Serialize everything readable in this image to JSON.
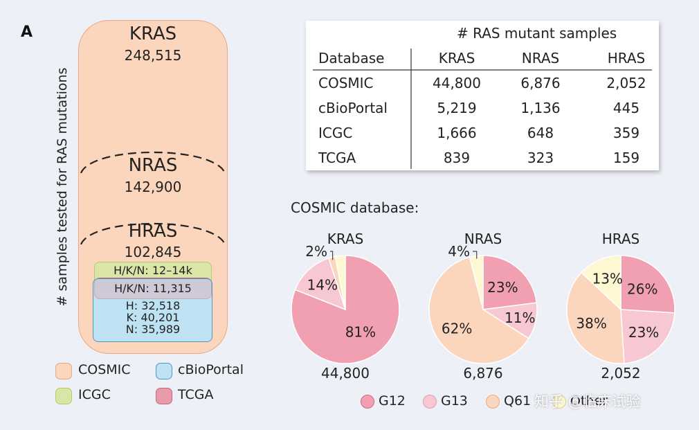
{
  "panel_label": "A",
  "y_axis_label": "# samples tested for RAS mutations",
  "venn": {
    "kras": {
      "label": "KRAS",
      "value": "248,515"
    },
    "nras": {
      "label": "NRAS",
      "value": "142,900"
    },
    "hras": {
      "label": "HRAS",
      "value": "102,845"
    },
    "icgc_label": "H/K/N: 12–14k",
    "tcga_label": "H/K/N: 11,315",
    "cbio_lines": [
      "H: 32,518",
      "K: 40,201",
      "N: 35,989"
    ]
  },
  "legend_left": [
    {
      "label": "COSMIC",
      "color": "#fcd5bd",
      "border": "#e6a886"
    },
    {
      "label": "cBioPortal",
      "color": "#bfe3f2",
      "border": "#4a98c8"
    },
    {
      "label": "ICGC",
      "color": "#d9e6a8",
      "border": "#b5c96e"
    },
    {
      "label": "TCGA",
      "color": "#e89aaa",
      "border": "#c06b80"
    }
  ],
  "table": {
    "title": "# RAS mutant samples",
    "headers": [
      "Database",
      "KRAS",
      "NRAS",
      "HRAS"
    ],
    "rows": [
      [
        "COSMIC",
        "44,800",
        "6,876",
        "2,052"
      ],
      [
        "cBioPortal",
        "5,219",
        "1,136",
        "445"
      ],
      [
        "ICGC",
        "1,666",
        "648",
        "359"
      ],
      [
        "TCGA",
        "839",
        "323",
        "159"
      ]
    ]
  },
  "cosmic_title": "COSMIC database:",
  "colors": {
    "G12": "#f1a0b2",
    "G13": "#f8c8d2",
    "Q61": "#fcd5bd",
    "Other": "#fdf7d2",
    "stroke": "#ffffff"
  },
  "chart_data": [
    {
      "type": "pie",
      "title": "KRAS",
      "total": "44,800",
      "slices": [
        {
          "name": "G12",
          "value": 81,
          "label": "81%"
        },
        {
          "name": "G13",
          "value": 14,
          "label": "14%"
        },
        {
          "name": "Q61",
          "value": 2,
          "label": "2%"
        },
        {
          "name": "Other",
          "value": 3,
          "label": ""
        }
      ]
    },
    {
      "type": "pie",
      "title": "NRAS",
      "total": "6,876",
      "slices": [
        {
          "name": "G12",
          "value": 23,
          "label": "23%"
        },
        {
          "name": "G13",
          "value": 11,
          "label": "11%"
        },
        {
          "name": "Q61",
          "value": 62,
          "label": "62%"
        },
        {
          "name": "Other",
          "value": 4,
          "label": "4%"
        }
      ]
    },
    {
      "type": "pie",
      "title": "HRAS",
      "total": "2,052",
      "slices": [
        {
          "name": "G12",
          "value": 26,
          "label": "26%"
        },
        {
          "name": "G13",
          "value": 23,
          "label": "23%"
        },
        {
          "name": "Q61",
          "value": 38,
          "label": "38%"
        },
        {
          "name": "Other",
          "value": 13,
          "label": "13%"
        }
      ]
    }
  ],
  "pie_legend": [
    {
      "name": "G12",
      "label": "G12"
    },
    {
      "name": "G13",
      "label": "G13"
    },
    {
      "name": "Q61",
      "label": "Q61"
    },
    {
      "name": "Other",
      "label": "Other"
    }
  ],
  "watermark": "知乎 @临床试验"
}
